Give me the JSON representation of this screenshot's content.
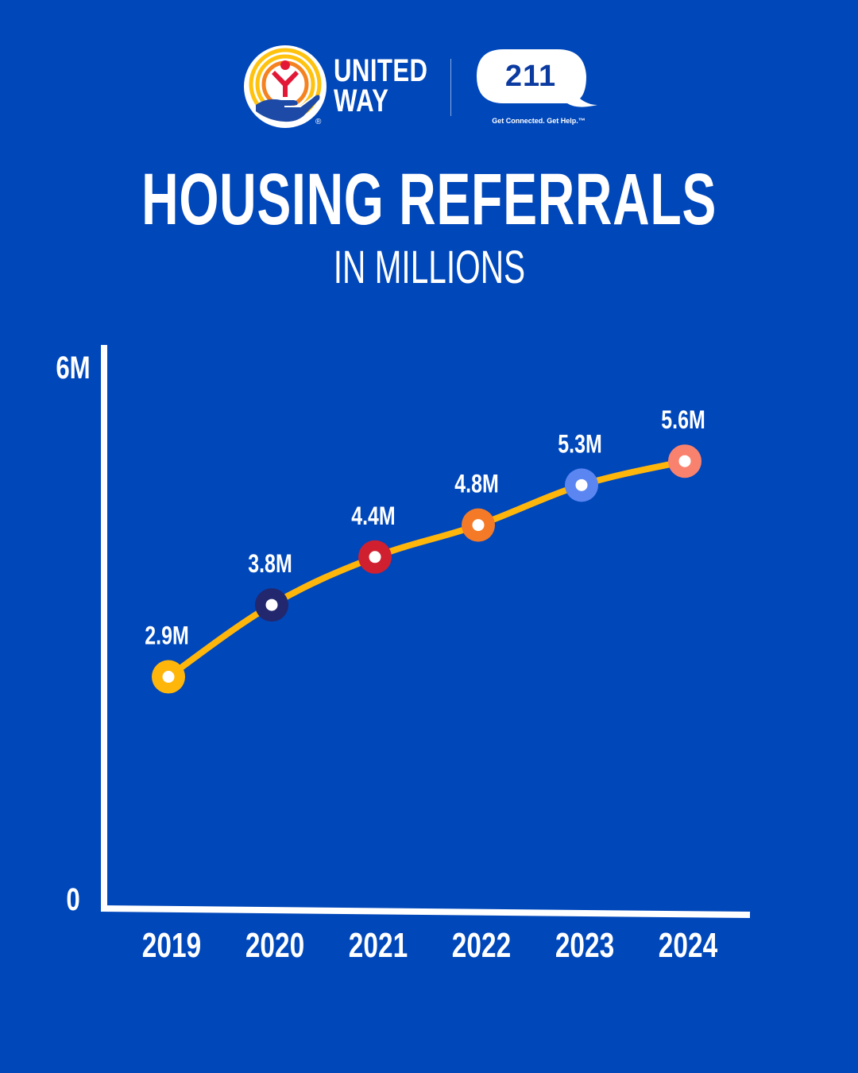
{
  "header": {
    "united_way": {
      "line1": "UNITED",
      "line2": "WAY",
      "registered_mark": "®",
      "colors": {
        "yellow": "#ffc20e",
        "orange": "#f58220",
        "red": "#e31837",
        "blue": "#1d4aa6"
      }
    },
    "badge_211": {
      "label": "211",
      "tagline": "Get Connected. Get Help.™"
    }
  },
  "chart_data": {
    "type": "line",
    "title": "HOUSING REFERRALS",
    "subtitle": "IN MILLIONS",
    "categories": [
      "2019",
      "2020",
      "2021",
      "2022",
      "2023",
      "2024"
    ],
    "values": [
      2.9,
      3.8,
      4.4,
      4.8,
      5.3,
      5.6
    ],
    "data_labels": [
      "2.9M",
      "3.8M",
      "4.4M",
      "4.8M",
      "5.3M",
      "5.6M"
    ],
    "y_ticks": [
      {
        "value": 0,
        "label": "0"
      },
      {
        "value": 6,
        "label": "6M"
      }
    ],
    "ylim": [
      0,
      6.3
    ],
    "xlabel": "",
    "ylabel": "",
    "grid": false,
    "line_color": "#ffb60b",
    "marker_colors": [
      "#ffb60b",
      "#22276e",
      "#d0202f",
      "#f47a27",
      "#5b86f2",
      "#f9826e"
    ]
  },
  "colors": {
    "background": "#0047ba",
    "text": "#ffffff"
  }
}
